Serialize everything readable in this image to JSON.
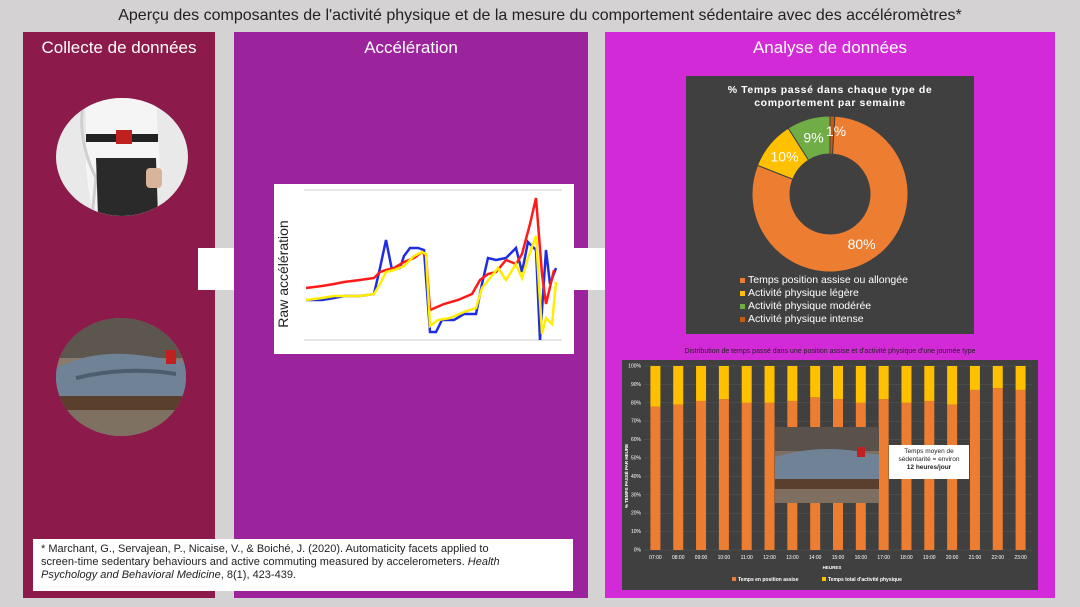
{
  "title": "Aperçu des composantes de l'activité physique et de la mesure du comportement sédentaire avec des accéléromètres*",
  "panels": {
    "collect": "Collecte de données",
    "accel": "Accélération",
    "analysis": "Analyse de données"
  },
  "accel_ylabel": "Raw accélération",
  "citation": {
    "line1": "* Marchant, G., Servajean, P., Nicaise, V., & Boiché, J. (2020). Automaticity facets applied to",
    "line2_plain": "screen-time sedentary behaviours and active commuting measured by accelerometers. ",
    "line2_italic": "Health",
    "line3_italic": "Psychology and Behavioral Medicine",
    "line3_rest": ", 8(1), 423-439."
  },
  "chart_data": [
    {
      "type": "pie",
      "title": "% Temps passé dans chaque type de comportement par semaine",
      "categories": [
        "Temps position assise ou allongée",
        "Activité physique légère",
        "Activité physique modérée",
        "Activité physique intense"
      ],
      "values": [
        80,
        10,
        9,
        1
      ],
      "labels": [
        "80%",
        "10%",
        "9%",
        "1%"
      ],
      "colors": [
        "#ed7d31",
        "#ffc000",
        "#70ad47",
        "#c55a11"
      ],
      "legend": "bottom"
    },
    {
      "type": "bar",
      "title": "Distribution de temps passé dans une position assise et d'activité physique d'une journée type",
      "xlabel": "HEURES",
      "ylabel": "% TEMPS PASSÉ PAR HEURE",
      "categories": [
        "07:00",
        "08:00",
        "09:00",
        "10:00",
        "11:00",
        "12:00",
        "13:00",
        "14:00",
        "15:00",
        "16:00",
        "17:00",
        "18:00",
        "19:00",
        "20:00",
        "21:00",
        "22:00",
        "23:00"
      ],
      "yticks": [
        "0%",
        "10%",
        "20%",
        "30%",
        "40%",
        "50%",
        "60%",
        "70%",
        "80%",
        "90%",
        "100%"
      ],
      "ylim": [
        0,
        100
      ],
      "series": [
        {
          "name": "Temps en position assise",
          "values": [
            78,
            79,
            81,
            82,
            80,
            80,
            81,
            83,
            82,
            80,
            82,
            80,
            81,
            79,
            87,
            88,
            87
          ],
          "color": "#ed7d31"
        },
        {
          "name": "Temps total d'activité physique",
          "values": [
            22,
            21,
            19,
            18,
            20,
            20,
            19,
            17,
            18,
            20,
            18,
            20,
            19,
            21,
            13,
            12,
            13
          ],
          "color": "#ffc000"
        }
      ],
      "annotation": {
        "line1": "Temps moyen de",
        "line2": "sédentarité = environ",
        "line3": "12 heures/jour"
      }
    }
  ]
}
